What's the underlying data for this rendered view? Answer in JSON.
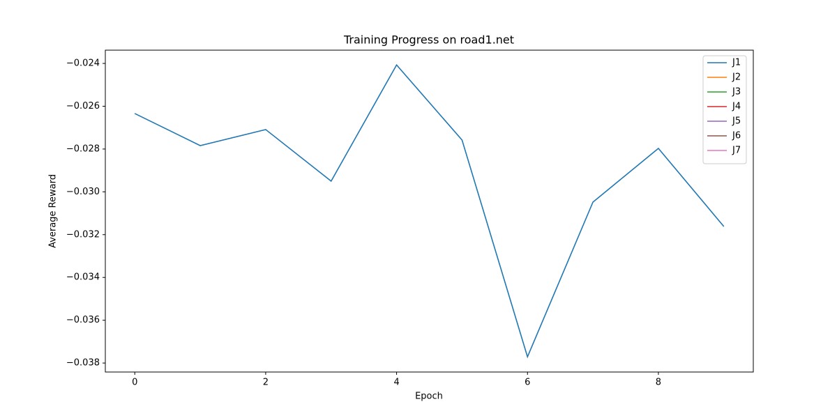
{
  "chart_data": {
    "type": "line",
    "title": "Training Progress on road1.net",
    "x_label": "Epoch",
    "y_label": "Average Reward",
    "x": [
      0,
      1,
      2,
      3,
      4,
      5,
      6,
      7,
      8,
      9
    ],
    "series": [
      {
        "name": "J1",
        "color": "#1f77b4",
        "values": [
          -0.02634,
          -0.02784,
          -0.02709,
          -0.0295,
          -0.02407,
          -0.02758,
          -0.03771,
          -0.03048,
          -0.02797,
          -0.03162
        ]
      },
      {
        "name": "J2",
        "color": "#ff7f0e",
        "values": [
          null,
          null,
          null,
          null,
          null,
          null,
          null,
          null,
          null,
          null
        ]
      },
      {
        "name": "J3",
        "color": "#2ca02c",
        "values": [
          null,
          null,
          null,
          null,
          null,
          null,
          null,
          null,
          null,
          null
        ]
      },
      {
        "name": "J4",
        "color": "#d62728",
        "values": [
          null,
          null,
          null,
          null,
          null,
          null,
          null,
          null,
          null,
          null
        ]
      },
      {
        "name": "J5",
        "color": "#9467bd",
        "values": [
          null,
          null,
          null,
          null,
          null,
          null,
          null,
          null,
          null,
          null
        ]
      },
      {
        "name": "J6",
        "color": "#8c564b",
        "values": [
          null,
          null,
          null,
          null,
          null,
          null,
          null,
          null,
          null,
          null
        ]
      },
      {
        "name": "J7",
        "color": "#e377c2",
        "values": [
          null,
          null,
          null,
          null,
          null,
          null,
          null,
          null,
          null,
          null
        ]
      }
    ],
    "xlim": [
      -0.45,
      9.45
    ],
    "xticks": [
      0,
      2,
      4,
      6,
      8
    ],
    "ylim": [
      -0.03842,
      -0.02338
    ],
    "yticks": [
      {
        "value": -0.038,
        "label": "−0.038"
      },
      {
        "value": -0.036,
        "label": "−0.036"
      },
      {
        "value": -0.034,
        "label": "−0.034"
      },
      {
        "value": -0.032,
        "label": "−0.032"
      },
      {
        "value": -0.03,
        "label": "−0.030"
      },
      {
        "value": -0.028,
        "label": "−0.028"
      },
      {
        "value": -0.026,
        "label": "−0.026"
      },
      {
        "value": -0.024,
        "label": "−0.024"
      }
    ],
    "legend": "upper right",
    "grid": false
  }
}
